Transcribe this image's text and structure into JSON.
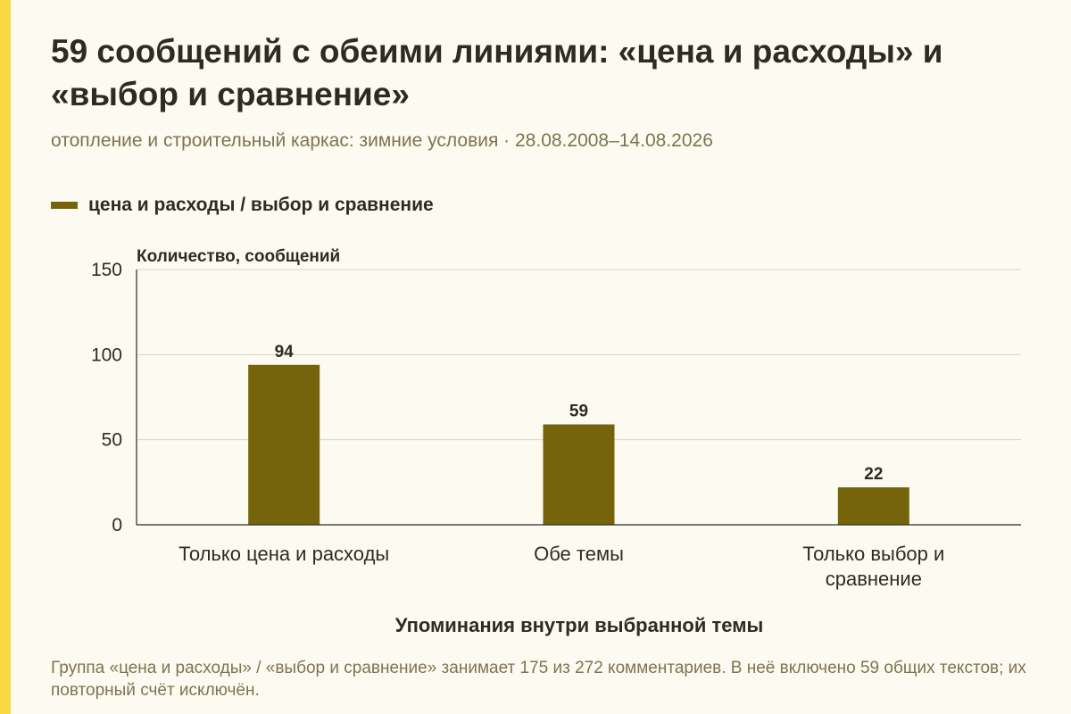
{
  "title": "59 сообщений с обеими линиями: «цена и расходы» и «выбор и сравнение»",
  "subtitle": "отопление и строительный каркас: зимние условия · 28.08.2008–14.08.2026",
  "note": "Группа «цена и расходы» / «выбор и сравнение» занимает 175 из 272 комментариев. В неё включено 59 общих текстов; их повторный счёт исключён.",
  "colors": {
    "bar": "#75640b",
    "accent": "#f8d845",
    "background": "#fdfbf1"
  },
  "chart_data": {
    "type": "bar",
    "categories": [
      [
        "Только цена и расходы"
      ],
      [
        "Обе темы"
      ],
      [
        "Только выбор и",
        "сравнение"
      ]
    ],
    "series": [
      {
        "name": "цена и расходы / выбор и сравнение",
        "values": [
          94,
          59,
          22
        ]
      }
    ],
    "ylabel": "Количество, сообщений",
    "xlabel": "Упоминания внутри выбранной темы",
    "ylim": [
      0,
      150
    ],
    "yticks": [
      0,
      50,
      100,
      150
    ],
    "grid": true,
    "legend": "top-left",
    "data_labels": true
  }
}
